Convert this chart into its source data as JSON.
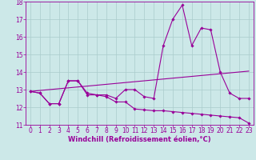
{
  "x": [
    0,
    1,
    2,
    3,
    4,
    5,
    6,
    7,
    8,
    9,
    10,
    11,
    12,
    13,
    14,
    15,
    16,
    17,
    18,
    19,
    20,
    21,
    22,
    23
  ],
  "line1": [
    12.9,
    12.8,
    12.2,
    12.2,
    13.5,
    13.5,
    12.8,
    12.7,
    12.7,
    12.5,
    13.0,
    13.0,
    12.6,
    12.5,
    15.5,
    17.0,
    17.8,
    15.5,
    16.5,
    16.4,
    14.0,
    12.8,
    12.5,
    12.5
  ],
  "line2": [
    12.9,
    12.95,
    13.0,
    13.05,
    13.1,
    13.15,
    13.2,
    13.25,
    13.3,
    13.35,
    13.4,
    13.45,
    13.5,
    13.55,
    13.6,
    13.65,
    13.7,
    13.75,
    13.8,
    13.85,
    13.9,
    13.95,
    14.0,
    14.05
  ],
  "line3": [
    12.9,
    12.8,
    12.2,
    12.2,
    13.5,
    13.5,
    12.7,
    12.7,
    12.6,
    12.3,
    12.3,
    11.9,
    11.85,
    11.8,
    11.8,
    11.75,
    11.7,
    11.65,
    11.6,
    11.55,
    11.5,
    11.45,
    11.4,
    11.1
  ],
  "ylim": [
    11,
    18
  ],
  "xlim": [
    -0.5,
    23.5
  ],
  "yticks": [
    11,
    12,
    13,
    14,
    15,
    16,
    17,
    18
  ],
  "xticks": [
    0,
    1,
    2,
    3,
    4,
    5,
    6,
    7,
    8,
    9,
    10,
    11,
    12,
    13,
    14,
    15,
    16,
    17,
    18,
    19,
    20,
    21,
    22,
    23
  ],
  "line_color": "#990099",
  "bg_color": "#cce8e8",
  "grid_color": "#aacccc",
  "xlabel": "Windchill (Refroidissement éolien,°C)",
  "tick_fontsize": 5.5,
  "label_fontsize": 6.0
}
